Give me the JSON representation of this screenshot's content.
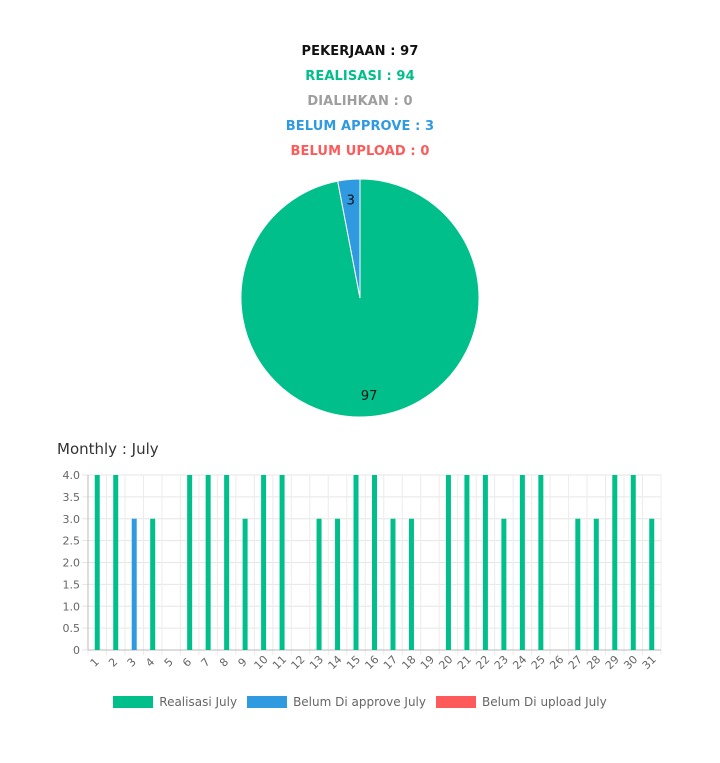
{
  "summary": {
    "pekerjaan": "PEKERJAAN : 97",
    "realisasi": "REALISASI : 94",
    "dialihkan": "DIALIHKAN : 0",
    "belum_approve": "BELUM APPROVE : 3",
    "belum_upload": "BELUM UPLOAD : 0"
  },
  "colors": {
    "green": "#00bf8a",
    "blue": "#2f9ae0",
    "red": "#ff5a5a",
    "gray": "#9e9e9e",
    "black": "#111111"
  },
  "chart_data": [
    {
      "type": "pie",
      "slices": [
        {
          "label": "97",
          "value": 97,
          "color": "#00bf8a"
        },
        {
          "label": "3",
          "value": 3,
          "color": "#2f9ae0"
        }
      ]
    },
    {
      "type": "bar",
      "title": "Monthly : July",
      "categories": [
        "1",
        "2",
        "3",
        "4",
        "5",
        "6",
        "7",
        "8",
        "9",
        "10",
        "11",
        "12",
        "13",
        "14",
        "15",
        "16",
        "17",
        "18",
        "19",
        "20",
        "21",
        "22",
        "23",
        "24",
        "25",
        "26",
        "27",
        "28",
        "29",
        "30",
        "31"
      ],
      "series": [
        {
          "name": "Realisasi July",
          "color": "#00bf8a",
          "values": [
            4,
            4,
            0,
            3,
            0,
            4,
            4,
            4,
            3,
            4,
            4,
            0,
            3,
            3,
            4,
            4,
            3,
            3,
            0,
            4,
            4,
            4,
            3,
            4,
            4,
            0,
            3,
            3,
            4,
            4,
            3
          ]
        },
        {
          "name": "Belum Di approve July",
          "color": "#2f9ae0",
          "values": [
            0,
            0,
            3,
            0,
            0,
            0,
            0,
            0,
            0,
            0,
            0,
            0,
            0,
            0,
            0,
            0,
            0,
            0,
            0,
            0,
            0,
            0,
            0,
            0,
            0,
            0,
            0,
            0,
            0,
            0,
            0
          ]
        },
        {
          "name": "Belum Di upload July",
          "color": "#ff5a5a",
          "values": [
            0,
            0,
            0,
            0,
            0,
            0,
            0,
            0,
            0,
            0,
            0,
            0,
            0,
            0,
            0,
            0,
            0,
            0,
            0,
            0,
            0,
            0,
            0,
            0,
            0,
            0,
            0,
            0,
            0,
            0,
            0
          ]
        }
      ],
      "yticks": [
        "0",
        "0.5",
        "1.0",
        "1.5",
        "2.0",
        "2.5",
        "3.0",
        "3.5",
        "4.0"
      ],
      "ylim": [
        0,
        4
      ],
      "grid": true,
      "legend_position": "bottom"
    }
  ]
}
